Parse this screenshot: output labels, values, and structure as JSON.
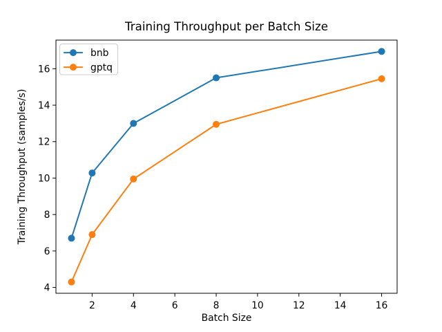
{
  "figure": {
    "title": "Training Throughput per Batch Size"
  },
  "chart_data": {
    "type": "line",
    "title": "Training Throughput per Batch Size",
    "xlabel": "Batch Size",
    "ylabel": "Training Throughput (samples/s)",
    "x": [
      1,
      2,
      4,
      8,
      16
    ],
    "series": [
      {
        "name": "bnb",
        "color": "#1f77b4",
        "marker": "circle",
        "values": [
          6.7,
          10.28,
          13.0,
          15.5,
          16.95
        ]
      },
      {
        "name": "gptq",
        "color": "#ff7f0e",
        "marker": "circle",
        "values": [
          4.3,
          6.9,
          9.95,
          12.95,
          15.45
        ]
      }
    ],
    "xlim": [
      0.25,
      16.75
    ],
    "ylim": [
      3.68,
      17.57
    ],
    "xticks": [
      2,
      4,
      6,
      8,
      10,
      12,
      14,
      16
    ],
    "yticks": [
      4,
      6,
      8,
      10,
      12,
      14,
      16
    ],
    "grid": false,
    "legend": {
      "position": "upper left",
      "entries": [
        "bnb",
        "gptq"
      ]
    },
    "axis_color": "#000000",
    "background": "#ffffff"
  }
}
